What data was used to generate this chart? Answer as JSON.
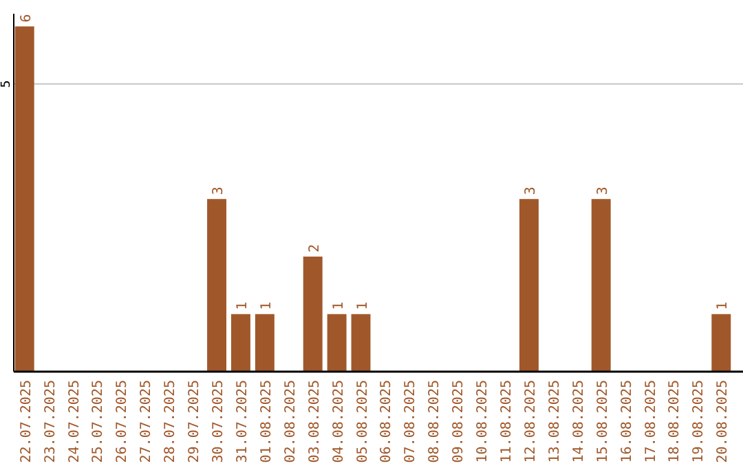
{
  "chart_data": {
    "type": "bar",
    "categories": [
      "22.07.2025",
      "23.07.2025",
      "24.07.2025",
      "25.07.2025",
      "26.07.2025",
      "27.07.2025",
      "28.07.2025",
      "29.07.2025",
      "30.07.2025",
      "31.07.2025",
      "01.08.2025",
      "02.08.2025",
      "03.08.2025",
      "04.08.2025",
      "05.08.2025",
      "06.08.2025",
      "07.08.2025",
      "08.08.2025",
      "09.08.2025",
      "10.08.2025",
      "11.08.2025",
      "12.08.2025",
      "13.08.2025",
      "14.08.2025",
      "15.08.2025",
      "16.08.2025",
      "17.08.2025",
      "18.08.2025",
      "19.08.2025",
      "20.08.2025"
    ],
    "values": [
      6,
      0,
      0,
      0,
      0,
      0,
      0,
      0,
      3,
      1,
      1,
      0,
      2,
      1,
      1,
      0,
      0,
      0,
      0,
      0,
      0,
      3,
      0,
      0,
      3,
      0,
      0,
      0,
      0,
      1
    ],
    "value_labels": [
      "6",
      null,
      null,
      null,
      null,
      null,
      null,
      null,
      "3",
      "1",
      "1",
      null,
      "2",
      "1",
      "1",
      null,
      null,
      null,
      null,
      null,
      null,
      "3",
      null,
      null,
      "3",
      null,
      null,
      null,
      null,
      "1"
    ],
    "color": "#a0582a",
    "ylim": [
      0,
      6.22
    ],
    "yticks": [
      5
    ],
    "grid": "y"
  }
}
